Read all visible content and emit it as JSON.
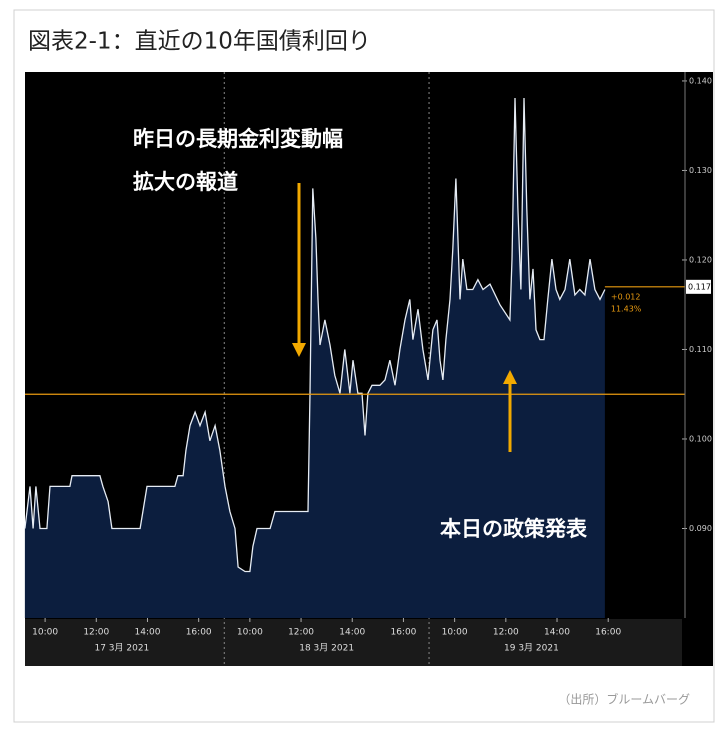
{
  "chart_data": {
    "type": "area",
    "title": "図表2-1：直近の10年国債利回り",
    "source": "（出所）ブルームバーグ",
    "annotations": [
      "昨日の長期金利変動幅",
      "拡大の報道",
      "本日の政策発表"
    ],
    "x": [
      0.21,
      0.41,
      0.53,
      0.64,
      0.8,
      1.07,
      1.19,
      1.97,
      2.05,
      3.14,
      3.26,
      3.46,
      3.61,
      3.85,
      4.71,
      4.82,
      4.98,
      6.07,
      6.19,
      6.39,
      6.5,
      6.66,
      6.86,
      7.05,
      7.25,
      7.44,
      7.64,
      7.83,
      8.03,
      8.22,
      8.42,
      8.54,
      8.81,
      9.0,
      9.12,
      9.28,
      9.79,
      9.98,
      11.27,
      11.35,
      11.46,
      11.58,
      11.66,
      11.74,
      11.93,
      12.13,
      12.32,
      12.52,
      12.71,
      12.91,
      13.03,
      13.22,
      13.38,
      13.5,
      13.61,
      13.77,
      14.08,
      14.28,
      14.47,
      14.67,
      14.86,
      15.06,
      15.25,
      15.37,
      15.57,
      15.76,
      15.96,
      16.15,
      16.31,
      16.43,
      16.54,
      16.66,
      16.82,
      16.93,
      17.05,
      17.21,
      17.32,
      17.48,
      17.71,
      17.91,
      18.11,
      18.38,
      18.77,
      19.16,
      19.24,
      19.36,
      19.47,
      19.59,
      19.71,
      19.82,
      19.94,
      20.06,
      20.18,
      20.33,
      20.49,
      20.64,
      20.8,
      20.96,
      21.11,
      21.31,
      21.5,
      21.7,
      21.89,
      22.09,
      22.29,
      22.48,
      22.68,
      22.87
    ],
    "values": [
      0.09,
      0.0947,
      0.09,
      0.0947,
      0.09,
      0.09,
      0.0947,
      0.0947,
      0.0959,
      0.0959,
      0.0947,
      0.093,
      0.09,
      0.09,
      0.09,
      0.0919,
      0.0947,
      0.0947,
      0.0959,
      0.0959,
      0.0987,
      0.1015,
      0.103,
      0.1015,
      0.103,
      0.0998,
      0.1015,
      0.0987,
      0.0947,
      0.0919,
      0.09,
      0.0857,
      0.0852,
      0.0852,
      0.088,
      0.09,
      0.09,
      0.0919,
      0.0919,
      0.1051,
      0.128,
      0.1224,
      0.1156,
      0.1105,
      0.1133,
      0.1105,
      0.1071,
      0.1051,
      0.11,
      0.1051,
      0.1088,
      0.1051,
      0.1051,
      0.1004,
      0.1051,
      0.106,
      0.106,
      0.1066,
      0.1088,
      0.106,
      0.11,
      0.1133,
      0.1156,
      0.1111,
      0.1145,
      0.11,
      0.1066,
      0.1122,
      0.1133,
      0.1088,
      0.1066,
      0.1111,
      0.1156,
      0.1212,
      0.1291,
      0.1156,
      0.1201,
      0.1167,
      0.1167,
      0.1178,
      0.1167,
      0.1173,
      0.115,
      0.1133,
      0.1201,
      0.1381,
      0.1257,
      0.1167,
      0.1381,
      0.1257,
      0.1156,
      0.119,
      0.1122,
      0.1111,
      0.1111,
      0.1156,
      0.1201,
      0.1167,
      0.1156,
      0.1167,
      0.1201,
      0.1161,
      0.1167,
      0.1161,
      0.1201,
      0.1167,
      0.1156,
      0.1167
    ],
    "color": "#e6ecf4",
    "fill_color": "#0c1e3e",
    "reference_value": 0.105,
    "reference_color": "#e89a10",
    "last_value": {
      "value": 0.117,
      "label": "0.117"
    },
    "change_label": "+0.012",
    "change_pct_label": "11.43%",
    "xlim": [
      0,
      26
    ],
    "xticks": [
      {
        "value": 1,
        "label": "10:00"
      },
      {
        "value": 3,
        "label": "12:00"
      },
      {
        "value": 5,
        "label": "14:00"
      },
      {
        "value": 7,
        "label": "16:00"
      },
      {
        "value": 9,
        "label": "10:00"
      },
      {
        "value": 11,
        "label": "12:00"
      },
      {
        "value": 13,
        "label": "14:00"
      },
      {
        "value": 15,
        "label": "16:00"
      },
      {
        "value": 17,
        "label": "10:00"
      },
      {
        "value": 19,
        "label": "12:00"
      },
      {
        "value": 21,
        "label": "14:00"
      },
      {
        "value": 23,
        "label": "16:00"
      }
    ],
    "day_labels": [
      "17 3月 2021",
      "18 3月 2021",
      "19 3月 2021"
    ],
    "ylim": [
      0.08,
      0.141
    ],
    "yticks": [
      {
        "value": 0.09,
        "label": "0.090"
      },
      {
        "value": 0.1,
        "label": "0.100"
      },
      {
        "value": 0.11,
        "label": "0.110"
      },
      {
        "value": 0.12,
        "label": "0.120"
      },
      {
        "value": 0.13,
        "label": "0.130"
      },
      {
        "value": 0.14,
        "label": "0.140"
      }
    ]
  }
}
